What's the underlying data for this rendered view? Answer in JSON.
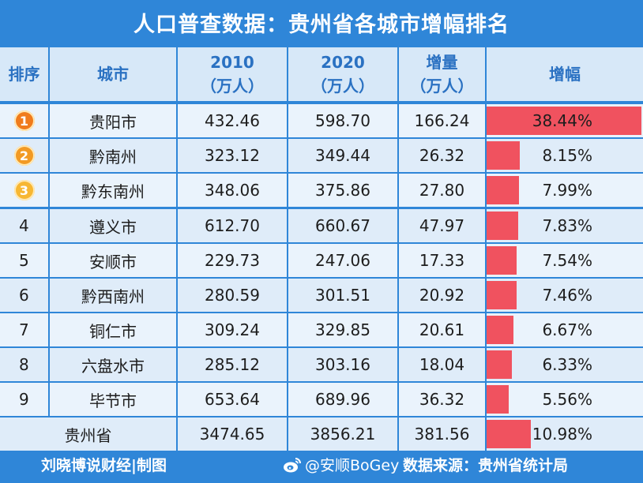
{
  "title": "人口普查数据：贵州省各城市增幅排名",
  "header": {
    "rank": "排序",
    "city": "城市",
    "y2010_top": "2010",
    "y2010_bottom": "（万人）",
    "y2020_top": "2020",
    "y2020_bottom": "（万人）",
    "inc_top": "增量",
    "inc_bottom": "（万人）",
    "pct": "增幅"
  },
  "chart_data": {
    "type": "table",
    "columns": [
      "排序",
      "城市",
      "2010（万人）",
      "2020（万人）",
      "增量（万人）",
      "增幅"
    ],
    "rows": [
      {
        "rank": "1",
        "city": "贵阳市",
        "y2010": "432.46",
        "y2020": "598.70",
        "inc": "166.24",
        "pct": "38.44%",
        "pct_value": 38.44
      },
      {
        "rank": "2",
        "city": "黔南州",
        "y2010": "323.12",
        "y2020": "349.44",
        "inc": "26.32",
        "pct": "8.15%",
        "pct_value": 8.15
      },
      {
        "rank": "3",
        "city": "黔东南州",
        "y2010": "348.06",
        "y2020": "375.86",
        "inc": "27.80",
        "pct": "7.99%",
        "pct_value": 7.99
      },
      {
        "rank": "4",
        "city": "遵义市",
        "y2010": "612.70",
        "y2020": "660.67",
        "inc": "47.97",
        "pct": "7.83%",
        "pct_value": 7.83
      },
      {
        "rank": "5",
        "city": "安顺市",
        "y2010": "229.73",
        "y2020": "247.06",
        "inc": "17.33",
        "pct": "7.54%",
        "pct_value": 7.54
      },
      {
        "rank": "6",
        "city": "黔西南州",
        "y2010": "280.59",
        "y2020": "301.51",
        "inc": "20.92",
        "pct": "7.46%",
        "pct_value": 7.46
      },
      {
        "rank": "7",
        "city": "铜仁市",
        "y2010": "309.24",
        "y2020": "329.85",
        "inc": "20.61",
        "pct": "6.67%",
        "pct_value": 6.67
      },
      {
        "rank": "8",
        "city": "六盘水市",
        "y2010": "285.12",
        "y2020": "303.16",
        "inc": "18.04",
        "pct": "6.33%",
        "pct_value": 6.33
      },
      {
        "rank": "9",
        "city": "毕节市",
        "y2010": "653.64",
        "y2020": "689.96",
        "inc": "36.32",
        "pct": "5.56%",
        "pct_value": 5.56
      }
    ],
    "total": {
      "city": "贵州省",
      "y2010": "3474.65",
      "y2020": "3856.21",
      "inc": "381.56",
      "pct": "10.98%",
      "pct_value": 10.98
    },
    "bar_max": 38.44
  },
  "colors": {
    "background": "#2f86d8",
    "bar": "#f0525f",
    "medal_1": "#f07b1c",
    "medal_2": "#f29a24",
    "medal_3": "#f7b733"
  },
  "footer": {
    "left": "刘晓博说财经|制图",
    "weibo_icon": "weibo-icon",
    "weibo": "@安顺BoGey",
    "source": "数据来源：贵州省统计局"
  }
}
